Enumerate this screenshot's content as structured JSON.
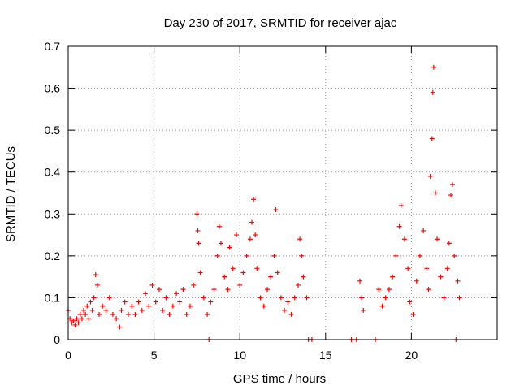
{
  "chart_data": {
    "type": "scatter",
    "title": "Day 230 of 2017, SRMTID for receiver ajac",
    "xlabel": "GPS time / hours",
    "ylabel": "SRMTID / TECUs",
    "xlim": [
      0,
      25
    ],
    "ylim": [
      0,
      0.7
    ],
    "x_ticks": [
      0,
      5,
      10,
      15,
      20
    ],
    "y_ticks": [
      0,
      0.1,
      0.2,
      0.3,
      0.4,
      0.5,
      0.6,
      0.7
    ],
    "x_tick_labels": [
      "0",
      "5",
      "10",
      "15",
      "20"
    ],
    "y_tick_labels": [
      "0",
      "0.1",
      "0.2",
      "0.3",
      "0.4",
      "0.5",
      "0.6",
      "0.7"
    ],
    "grid": true,
    "marker": "+",
    "marker_color": "#ff0000",
    "series": [
      {
        "name": "SRMTID",
        "points": [
          [
            0.0,
            0.07
          ],
          [
            0.1,
            0.05
          ],
          [
            0.2,
            0.04
          ],
          [
            0.3,
            0.045
          ],
          [
            0.4,
            0.035
          ],
          [
            0.5,
            0.05
          ],
          [
            0.6,
            0.04
          ],
          [
            0.7,
            0.06
          ],
          [
            0.8,
            0.05
          ],
          [
            0.9,
            0.07
          ],
          [
            1.0,
            0.06
          ],
          [
            1.1,
            0.08
          ],
          [
            1.2,
            0.05
          ],
          [
            1.3,
            0.09
          ],
          [
            1.4,
            0.07
          ],
          [
            1.5,
            0.1
          ],
          [
            1.6,
            0.155
          ],
          [
            1.7,
            0.13
          ],
          [
            1.8,
            0.06
          ],
          [
            2.0,
            0.08
          ],
          [
            2.2,
            0.07
          ],
          [
            2.4,
            0.1
          ],
          [
            2.6,
            0.06
          ],
          [
            2.8,
            0.05
          ],
          [
            3.0,
            0.03
          ],
          [
            3.1,
            0.07
          ],
          [
            3.3,
            0.09
          ],
          [
            3.5,
            0.06
          ],
          [
            3.7,
            0.08
          ],
          [
            3.9,
            0.06
          ],
          [
            4.1,
            0.09
          ],
          [
            4.3,
            0.07
          ],
          [
            4.5,
            0.11
          ],
          [
            4.7,
            0.08
          ],
          [
            4.9,
            0.13
          ],
          [
            5.1,
            0.09
          ],
          [
            5.3,
            0.12
          ],
          [
            5.5,
            0.07
          ],
          [
            5.7,
            0.1
          ],
          [
            5.9,
            0.06
          ],
          [
            6.1,
            0.08
          ],
          [
            6.3,
            0.11
          ],
          [
            6.5,
            0.09
          ],
          [
            6.7,
            0.12
          ],
          [
            6.9,
            0.06
          ],
          [
            7.1,
            0.08
          ],
          [
            7.3,
            0.13
          ],
          [
            7.5,
            0.3
          ],
          [
            7.55,
            0.26
          ],
          [
            7.6,
            0.23
          ],
          [
            7.7,
            0.16
          ],
          [
            7.9,
            0.1
          ],
          [
            8.1,
            0.06
          ],
          [
            8.2,
            0.0
          ],
          [
            8.3,
            0.09
          ],
          [
            8.5,
            0.12
          ],
          [
            8.7,
            0.2
          ],
          [
            8.8,
            0.27
          ],
          [
            8.9,
            0.23
          ],
          [
            9.1,
            0.15
          ],
          [
            9.3,
            0.12
          ],
          [
            9.4,
            0.22
          ],
          [
            9.6,
            0.17
          ],
          [
            9.8,
            0.25
          ],
          [
            10.0,
            0.13
          ],
          [
            10.2,
            0.16
          ],
          [
            10.4,
            0.2
          ],
          [
            10.6,
            0.24
          ],
          [
            10.7,
            0.28
          ],
          [
            10.8,
            0.335
          ],
          [
            10.9,
            0.25
          ],
          [
            11.0,
            0.17
          ],
          [
            11.2,
            0.1
          ],
          [
            11.4,
            0.08
          ],
          [
            11.6,
            0.12
          ],
          [
            11.8,
            0.15
          ],
          [
            12.0,
            0.2
          ],
          [
            12.1,
            0.31
          ],
          [
            12.2,
            0.16
          ],
          [
            12.4,
            0.1
          ],
          [
            12.6,
            0.07
          ],
          [
            12.8,
            0.09
          ],
          [
            13.0,
            0.06
          ],
          [
            13.2,
            0.1
          ],
          [
            13.4,
            0.13
          ],
          [
            13.5,
            0.24
          ],
          [
            13.6,
            0.2
          ],
          [
            13.7,
            0.15
          ],
          [
            13.9,
            0.1
          ],
          [
            14.0,
            0.0
          ],
          [
            14.2,
            0.0
          ],
          [
            16.5,
            0.0
          ],
          [
            16.8,
            0.0
          ],
          [
            17.0,
            0.14
          ],
          [
            17.1,
            0.1
          ],
          [
            17.2,
            0.07
          ],
          [
            17.9,
            0.0
          ],
          [
            18.1,
            0.12
          ],
          [
            18.3,
            0.08
          ],
          [
            18.5,
            0.1
          ],
          [
            18.7,
            0.12
          ],
          [
            18.9,
            0.15
          ],
          [
            19.1,
            0.2
          ],
          [
            19.3,
            0.27
          ],
          [
            19.4,
            0.32
          ],
          [
            19.6,
            0.24
          ],
          [
            19.8,
            0.17
          ],
          [
            19.9,
            0.09
          ],
          [
            20.1,
            0.06
          ],
          [
            20.3,
            0.14
          ],
          [
            20.5,
            0.2
          ],
          [
            20.7,
            0.26
          ],
          [
            20.9,
            0.17
          ],
          [
            21.0,
            0.12
          ],
          [
            21.1,
            0.39
          ],
          [
            21.2,
            0.48
          ],
          [
            21.25,
            0.59
          ],
          [
            21.3,
            0.65
          ],
          [
            21.4,
            0.35
          ],
          [
            21.5,
            0.24
          ],
          [
            21.7,
            0.15
          ],
          [
            21.9,
            0.1
          ],
          [
            22.1,
            0.17
          ],
          [
            22.2,
            0.23
          ],
          [
            22.3,
            0.345
          ],
          [
            22.4,
            0.37
          ],
          [
            22.5,
            0.2
          ],
          [
            22.6,
            0.0
          ],
          [
            22.7,
            0.14
          ],
          [
            22.8,
            0.1
          ]
        ]
      }
    ]
  }
}
